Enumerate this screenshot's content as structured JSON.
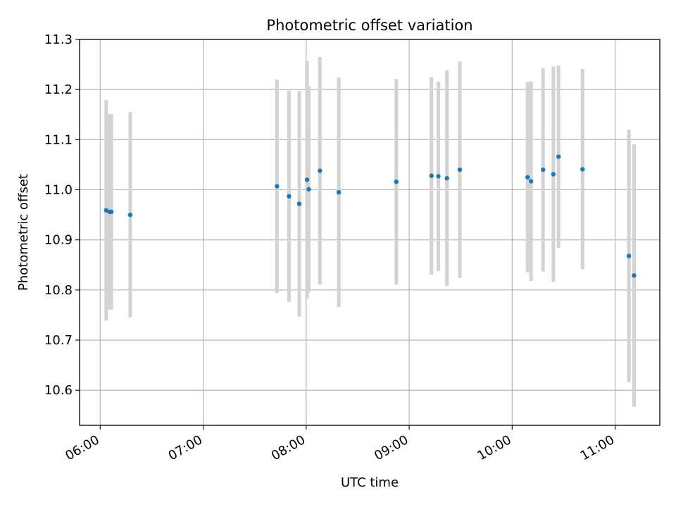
{
  "chart_data": {
    "type": "scatter",
    "title": "Photometric offset variation",
    "xlabel": "UTC time",
    "ylabel": "Photometric offset",
    "xlim": [
      "05:48",
      "11:26"
    ],
    "ylim": [
      10.53,
      11.3
    ],
    "x_ticks": [
      "06:00",
      "07:00",
      "08:00",
      "09:00",
      "10:00",
      "11:00"
    ],
    "y_ticks": [
      "10.6",
      "10.7",
      "10.8",
      "10.9",
      "11.0",
      "11.1",
      "11.2",
      "11.3"
    ],
    "grid": true,
    "colors": {
      "point": "#1f77b4",
      "errorbar": "#d3d3d3",
      "grid": "#b0b0b0"
    },
    "series": [
      {
        "points": [
          {
            "x": "06:03.5",
            "y": 10.959,
            "err": 0.22
          },
          {
            "x": "06:05.5",
            "y": 10.956,
            "err": 0.195
          },
          {
            "x": "06:06.5",
            "y": 10.956,
            "err": 0.195
          },
          {
            "x": "06:17.5",
            "y": 10.95,
            "err": 0.205
          },
          {
            "x": "07:43",
            "y": 11.007,
            "err": 0.213
          },
          {
            "x": "07:50",
            "y": 10.987,
            "err": 0.211
          },
          {
            "x": "07:56",
            "y": 10.972,
            "err": 0.225
          },
          {
            "x": "08:00.5",
            "y": 11.02,
            "err": 0.237
          },
          {
            "x": "08:01.5",
            "y": 11.001,
            "err": 0.205
          },
          {
            "x": "08:08",
            "y": 11.038,
            "err": 0.227
          },
          {
            "x": "08:19",
            "y": 10.995,
            "err": 0.229
          },
          {
            "x": "08:52.5",
            "y": 11.016,
            "err": 0.205
          },
          {
            "x": "09:13",
            "y": 11.028,
            "err": 0.197
          },
          {
            "x": "09:17",
            "y": 11.027,
            "err": 0.189
          },
          {
            "x": "09:22",
            "y": 11.023,
            "err": 0.215
          },
          {
            "x": "09:29.5",
            "y": 11.04,
            "err": 0.216
          },
          {
            "x": "10:09",
            "y": 11.025,
            "err": 0.19
          },
          {
            "x": "10:11",
            "y": 11.017,
            "err": 0.199
          },
          {
            "x": "10:18",
            "y": 11.04,
            "err": 0.203
          },
          {
            "x": "10:24",
            "y": 11.031,
            "err": 0.215
          },
          {
            "x": "10:27",
            "y": 11.066,
            "err": 0.182
          },
          {
            "x": "10:41",
            "y": 11.041,
            "err": 0.2
          },
          {
            "x": "11:08",
            "y": 10.868,
            "err": 0.252
          },
          {
            "x": "11:11",
            "y": 10.829,
            "err": 0.262
          }
        ]
      }
    ]
  }
}
